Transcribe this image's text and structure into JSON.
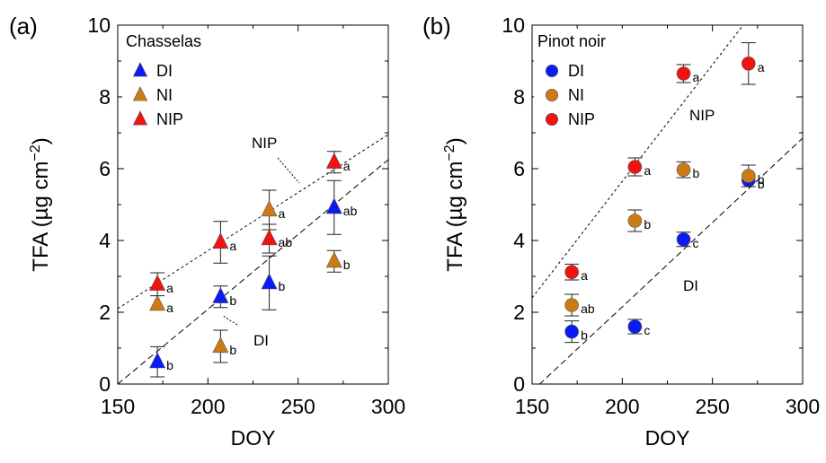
{
  "chart_data": [
    {
      "type": "scatter",
      "panel_label": "(a)",
      "legend_title": "Chasselas",
      "xlabel": "DOY",
      "ylabel": "TFA (µg cm",
      "ylabel_sup": "−2",
      "ylabel_close": ")",
      "xlim": [
        150,
        300
      ],
      "ylim": [
        0,
        10
      ],
      "xticks": [
        "150",
        "200",
        "250",
        "300"
      ],
      "yticks": [
        "0",
        "2",
        "4",
        "6",
        "8",
        "10"
      ],
      "marker": "triangle",
      "legend_position": "top-left",
      "series": [
        {
          "name": "DI",
          "color": "#0a1bf5",
          "points": [
            {
              "x": 172,
              "y": 0.62,
              "err": 0.42,
              "label": "b"
            },
            {
              "x": 207,
              "y": 2.43,
              "err": 0.3,
              "label": "b"
            },
            {
              "x": 234,
              "y": 2.82,
              "err": 0.75,
              "label": "b"
            },
            {
              "x": 270,
              "y": 4.92,
              "err": 0.75,
              "label": "ab"
            }
          ]
        },
        {
          "name": "NI",
          "color": "#cc7a14",
          "points": [
            {
              "x": 172,
              "y": 2.22,
              "err": 0,
              "label": "a"
            },
            {
              "x": 207,
              "y": 1.05,
              "err": 0.45,
              "label": "b"
            },
            {
              "x": 234,
              "y": 4.85,
              "err": 0.55,
              "label": "a"
            },
            {
              "x": 270,
              "y": 3.42,
              "err": 0.3,
              "label": "b"
            }
          ]
        },
        {
          "name": "NIP",
          "color": "#f2120f",
          "points": [
            {
              "x": 172,
              "y": 2.78,
              "err": 0.32,
              "label": "a"
            },
            {
              "x": 207,
              "y": 3.95,
              "err": 0.58,
              "label": "a"
            },
            {
              "x": 234,
              "y": 4.05,
              "err": 0.4,
              "label": "ab"
            },
            {
              "x": 270,
              "y": 6.18,
              "err": 0.3,
              "label": "a"
            }
          ]
        }
      ],
      "fit_lines": [
        {
          "name": "NIP",
          "x": [
            150,
            300
          ],
          "y": [
            2.1,
            6.95
          ]
        },
        {
          "name": "DI",
          "x": [
            150,
            300
          ],
          "y": [
            0.0,
            6.25
          ]
        }
      ]
    },
    {
      "type": "scatter",
      "panel_label": "(b)",
      "legend_title": "Pinot noir",
      "xlabel": "DOY",
      "ylabel": "TFA (µg cm",
      "ylabel_sup": "−2",
      "ylabel_close": ")",
      "xlim": [
        150,
        300
      ],
      "ylim": [
        0,
        10
      ],
      "xticks": [
        "150",
        "200",
        "250",
        "300"
      ],
      "yticks": [
        "0",
        "2",
        "4",
        "6",
        "8",
        "10"
      ],
      "marker": "circle",
      "legend_position": "top-left",
      "series": [
        {
          "name": "DI",
          "color": "#0a1bf5",
          "points": [
            {
              "x": 172,
              "y": 1.46,
              "err": 0.3,
              "label": "b"
            },
            {
              "x": 207,
              "y": 1.6,
              "err": 0.2,
              "label": "c"
            },
            {
              "x": 234,
              "y": 4.03,
              "err": 0.2,
              "label": "c"
            },
            {
              "x": 270,
              "y": 5.68,
              "err": 0,
              "label": "b"
            }
          ]
        },
        {
          "name": "NI",
          "color": "#cc7a14",
          "points": [
            {
              "x": 172,
              "y": 2.2,
              "err": 0.3,
              "label": "ab"
            },
            {
              "x": 207,
              "y": 4.55,
              "err": 0.3,
              "label": "b"
            },
            {
              "x": 234,
              "y": 5.97,
              "err": 0.22,
              "label": "b"
            },
            {
              "x": 270,
              "y": 5.8,
              "err": 0.3,
              "label": "b"
            }
          ]
        },
        {
          "name": "NIP",
          "color": "#f2120f",
          "points": [
            {
              "x": 172,
              "y": 3.12,
              "err": 0.22,
              "label": "a"
            },
            {
              "x": 207,
              "y": 6.05,
              "err": 0.25,
              "label": "a"
            },
            {
              "x": 234,
              "y": 8.65,
              "err": 0.25,
              "label": "a"
            },
            {
              "x": 270,
              "y": 8.93,
              "err": 0.58,
              "label": "a"
            }
          ]
        }
      ],
      "fit_lines": [
        {
          "name": "NIP",
          "x": [
            150,
            267
          ],
          "y": [
            2.4,
            10.0
          ]
        },
        {
          "name": "DI",
          "x": [
            150,
            300
          ],
          "y": [
            -0.2,
            6.85
          ]
        }
      ]
    }
  ]
}
